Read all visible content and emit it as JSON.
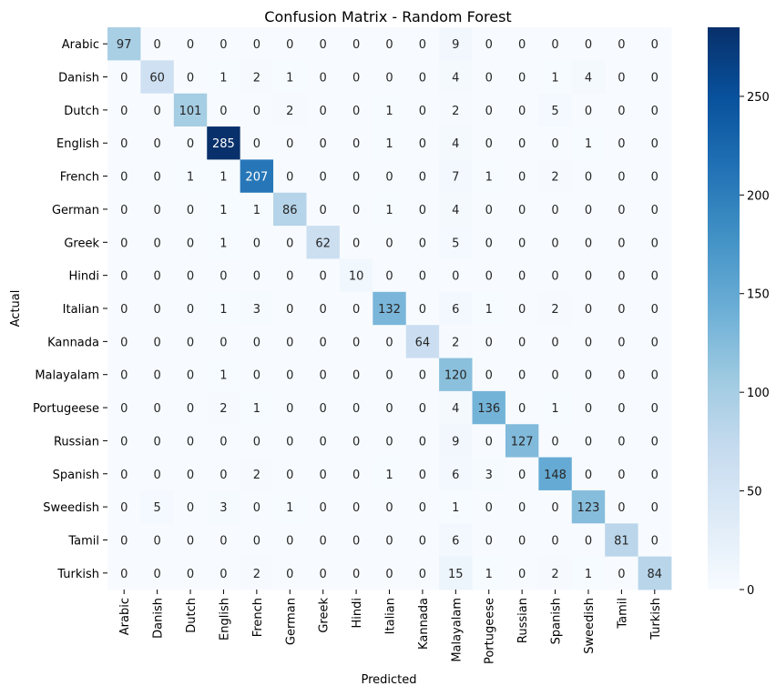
{
  "chart_data": {
    "type": "heatmap",
    "title": "Confusion Matrix - Random Forest",
    "xlabel": "Predicted",
    "ylabel": "Actual",
    "x_categories": [
      "Arabic",
      "Danish",
      "Dutch",
      "English",
      "French",
      "German",
      "Greek",
      "Hindi",
      "Italian",
      "Kannada",
      "Malayalam",
      "Portugeese",
      "Russian",
      "Spanish",
      "Sweedish",
      "Tamil",
      "Turkish"
    ],
    "y_categories": [
      "Arabic",
      "Danish",
      "Dutch",
      "English",
      "French",
      "German",
      "Greek",
      "Hindi",
      "Italian",
      "Kannada",
      "Malayalam",
      "Portugeese",
      "Russian",
      "Spanish",
      "Sweedish",
      "Tamil",
      "Turkish"
    ],
    "matrix": [
      [
        97,
        0,
        0,
        0,
        0,
        0,
        0,
        0,
        0,
        0,
        9,
        0,
        0,
        0,
        0,
        0,
        0
      ],
      [
        0,
        60,
        0,
        1,
        2,
        1,
        0,
        0,
        0,
        0,
        4,
        0,
        0,
        1,
        4,
        0,
        0
      ],
      [
        0,
        0,
        101,
        0,
        0,
        2,
        0,
        0,
        1,
        0,
        2,
        0,
        0,
        5,
        0,
        0,
        0
      ],
      [
        0,
        0,
        0,
        285,
        0,
        0,
        0,
        0,
        1,
        0,
        4,
        0,
        0,
        0,
        1,
        0,
        0
      ],
      [
        0,
        0,
        1,
        1,
        207,
        0,
        0,
        0,
        0,
        0,
        7,
        1,
        0,
        2,
        0,
        0,
        0
      ],
      [
        0,
        0,
        0,
        1,
        1,
        86,
        0,
        0,
        1,
        0,
        4,
        0,
        0,
        0,
        0,
        0,
        0
      ],
      [
        0,
        0,
        0,
        1,
        0,
        0,
        62,
        0,
        0,
        0,
        5,
        0,
        0,
        0,
        0,
        0,
        0
      ],
      [
        0,
        0,
        0,
        0,
        0,
        0,
        0,
        10,
        0,
        0,
        0,
        0,
        0,
        0,
        0,
        0,
        0
      ],
      [
        0,
        0,
        0,
        1,
        3,
        0,
        0,
        0,
        132,
        0,
        6,
        1,
        0,
        2,
        0,
        0,
        0
      ],
      [
        0,
        0,
        0,
        0,
        0,
        0,
        0,
        0,
        0,
        64,
        2,
        0,
        0,
        0,
        0,
        0,
        0
      ],
      [
        0,
        0,
        0,
        1,
        0,
        0,
        0,
        0,
        0,
        0,
        120,
        0,
        0,
        0,
        0,
        0,
        0
      ],
      [
        0,
        0,
        0,
        2,
        1,
        0,
        0,
        0,
        0,
        0,
        4,
        136,
        0,
        1,
        0,
        0,
        0
      ],
      [
        0,
        0,
        0,
        0,
        0,
        0,
        0,
        0,
        0,
        0,
        9,
        0,
        127,
        0,
        0,
        0,
        0
      ],
      [
        0,
        0,
        0,
        0,
        2,
        0,
        0,
        0,
        1,
        0,
        6,
        3,
        0,
        148,
        0,
        0,
        0
      ],
      [
        0,
        5,
        0,
        3,
        0,
        1,
        0,
        0,
        0,
        0,
        1,
        0,
        0,
        0,
        123,
        0,
        0
      ],
      [
        0,
        0,
        0,
        0,
        0,
        0,
        0,
        0,
        0,
        0,
        6,
        0,
        0,
        0,
        0,
        81,
        0
      ],
      [
        0,
        0,
        0,
        0,
        2,
        0,
        0,
        0,
        0,
        0,
        15,
        1,
        0,
        2,
        1,
        0,
        84
      ]
    ],
    "colormap": "Blues",
    "vmin": 0,
    "vmax": 285,
    "colorbar_ticks": [
      0,
      50,
      100,
      150,
      200,
      250
    ],
    "annotations": true,
    "grid": false
  }
}
